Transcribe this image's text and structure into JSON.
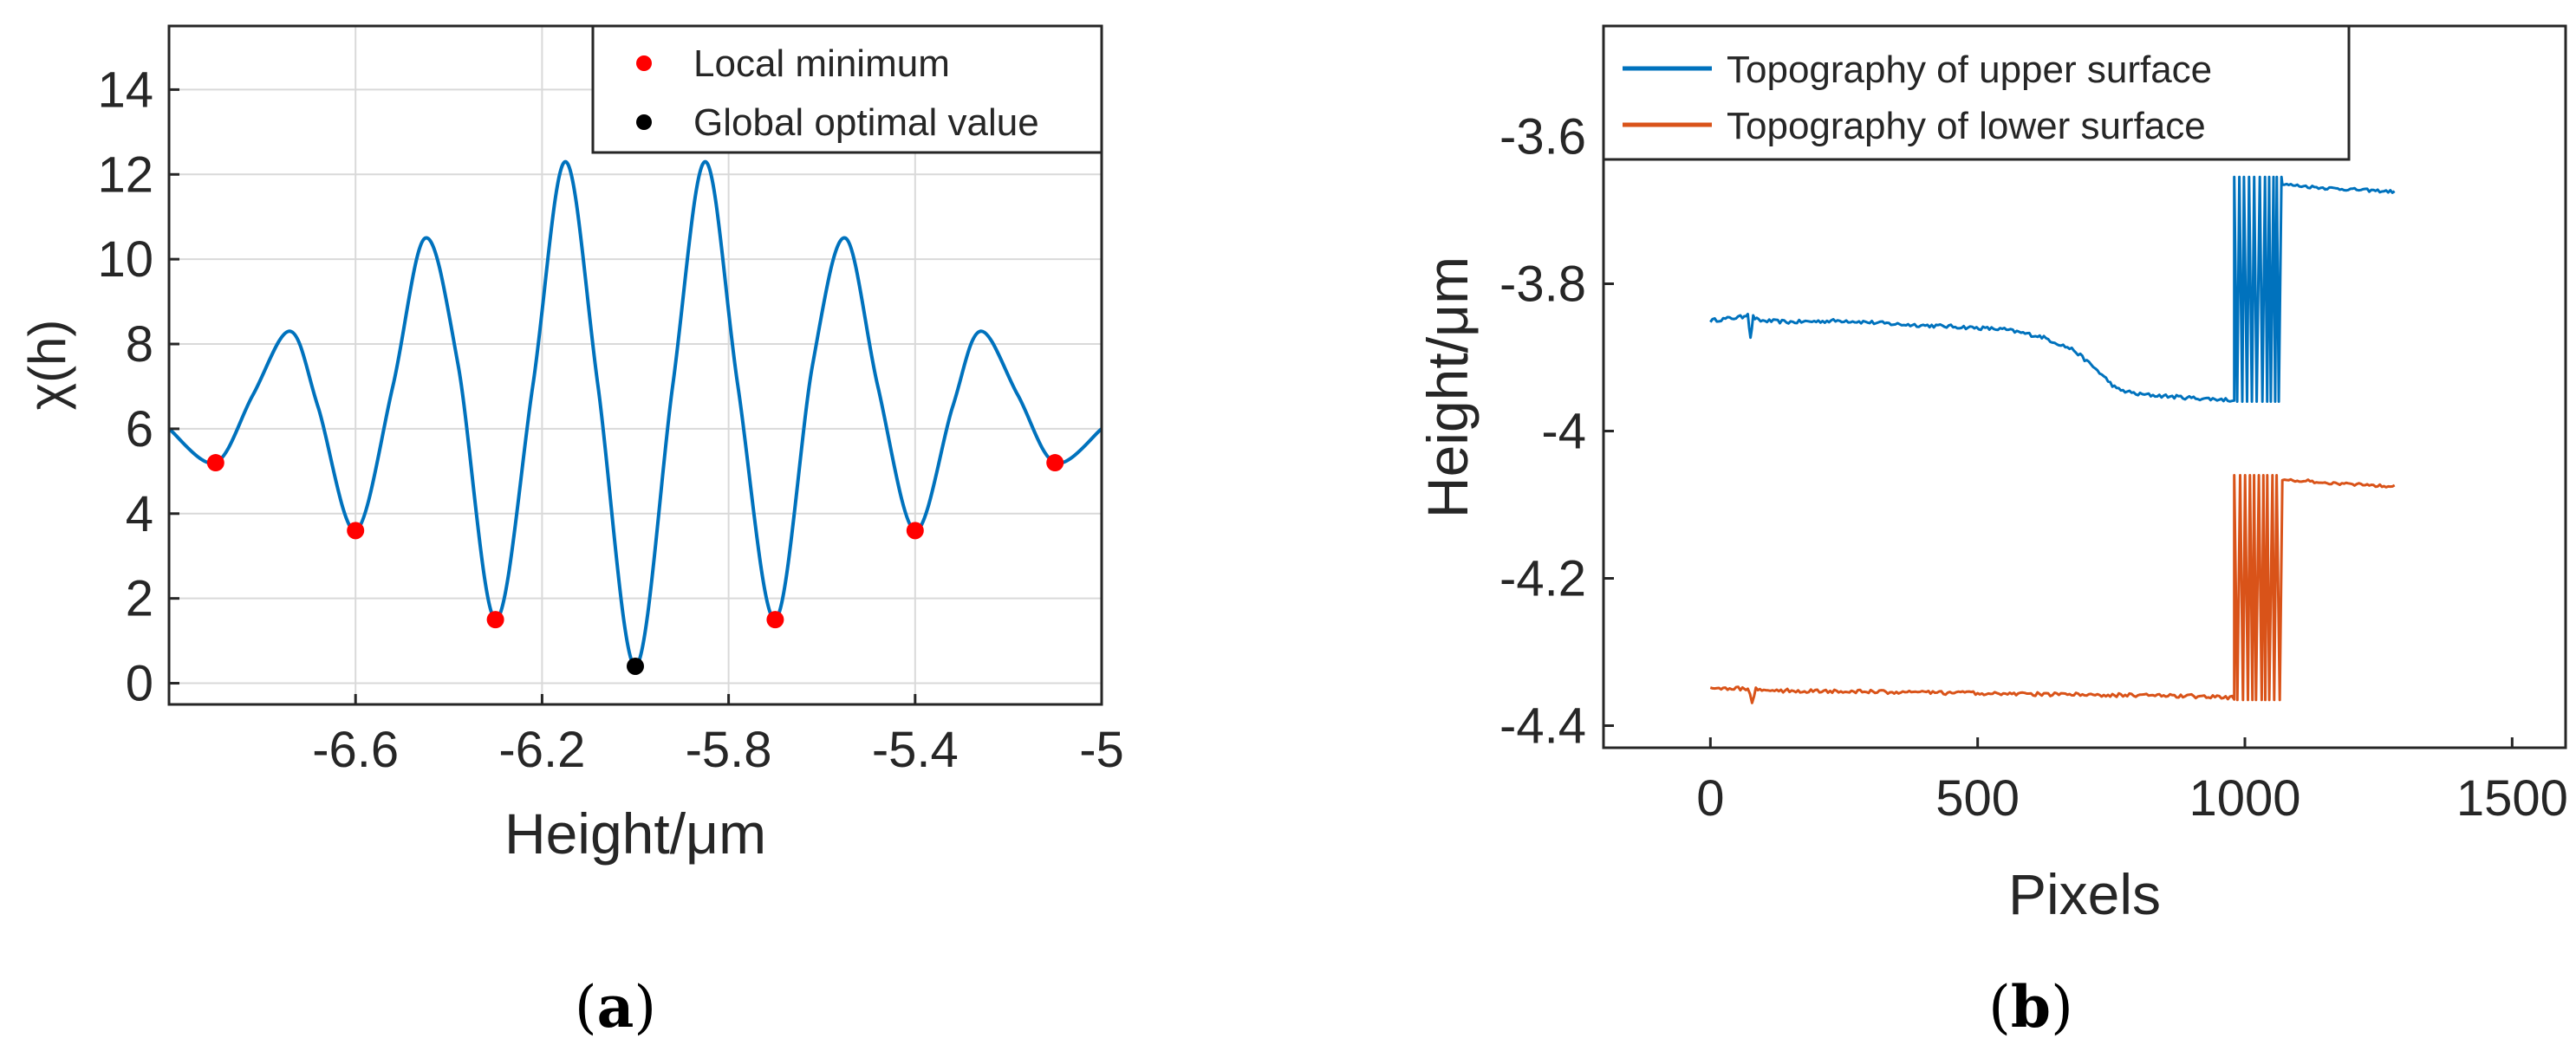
{
  "colors": {
    "blue": "#0072BD",
    "orange": "#D95319",
    "red": "#FF0000",
    "black": "#000000",
    "grid": "#D9D9D9",
    "axis": "#262626"
  },
  "chart_data": [
    {
      "type": "line",
      "panel_label": "(a)",
      "panel_letter": "a",
      "xlabel": "Height/μm",
      "ylabel": "χ(h)",
      "xlim": [
        -7.0,
        -5.0
      ],
      "ylim": [
        -0.5,
        15.5
      ],
      "xticks": [
        -6.6,
        -6.2,
        -5.8,
        -5.4,
        -5.0
      ],
      "xtick_labels": [
        "-6.6",
        "-6.2",
        "-5.8",
        "-5.4",
        "-5"
      ],
      "yticks": [
        0,
        2,
        4,
        6,
        8,
        10,
        12,
        14
      ],
      "ytick_labels": [
        "0",
        "2",
        "4",
        "6",
        "8",
        "10",
        "12",
        "14"
      ],
      "grid": true,
      "legend_position": "top-right",
      "series": [
        {
          "name": "χ(h)",
          "kind": "line",
          "x": [
            -7.0,
            -6.9,
            -6.82,
            -6.74,
            -6.68,
            -6.6,
            -6.52,
            -6.45,
            -6.38,
            -6.3,
            -6.22,
            -6.15,
            -6.08,
            -6.0,
            -5.92,
            -5.85,
            -5.78,
            -5.7,
            -5.62,
            -5.55,
            -5.48,
            -5.4,
            -5.32,
            -5.26,
            -5.18,
            -5.1,
            -5.0
          ],
          "values": [
            6.0,
            5.2,
            6.8,
            8.3,
            6.5,
            3.6,
            7.0,
            10.5,
            7.5,
            1.5,
            7.0,
            12.3,
            7.0,
            0.4,
            7.0,
            12.3,
            7.0,
            1.5,
            7.5,
            10.5,
            7.0,
            3.6,
            6.5,
            8.3,
            6.8,
            5.2,
            6.0
          ]
        },
        {
          "name": "Local minimum",
          "kind": "marker",
          "x": [
            -6.9,
            -6.6,
            -6.3,
            -5.7,
            -5.4,
            -5.1
          ],
          "values": [
            5.2,
            3.6,
            1.5,
            1.5,
            3.6,
            5.2
          ]
        },
        {
          "name": "Global optimal value",
          "kind": "marker",
          "x": [
            -6.0
          ],
          "values": [
            0.4
          ]
        }
      ]
    },
    {
      "type": "line",
      "panel_label": "(b)",
      "panel_letter": "b",
      "xlabel": "Pixels",
      "ylabel": "Height/μm",
      "xlim": [
        -200,
        1600
      ],
      "ylim": [
        -4.43,
        -3.45
      ],
      "xticks": [
        0,
        500,
        1000,
        1500
      ],
      "xtick_labels": [
        "0",
        "500",
        "1000",
        "1500"
      ],
      "yticks": [
        -4.4,
        -4.2,
        -4.0,
        -3.8,
        -3.6
      ],
      "ytick_labels": [
        "-4.4",
        "-4.2",
        "-4",
        "-3.8",
        "-3.6"
      ],
      "grid": false,
      "legend_position": "top-left",
      "series": [
        {
          "name": "Topography of upper surface",
          "x": [
            0,
            60,
            70,
            75,
            80,
            90,
            150,
            250,
            350,
            450,
            550,
            620,
            680,
            720,
            760,
            800,
            900,
            980
          ],
          "values": [
            -3.85,
            -3.845,
            -3.84,
            -3.875,
            -3.845,
            -3.85,
            -3.852,
            -3.85,
            -3.855,
            -3.858,
            -3.862,
            -3.872,
            -3.89,
            -3.915,
            -3.943,
            -3.95,
            -3.955,
            -3.958
          ],
          "spike_region": [
            980,
            1070
          ],
          "spike_range": [
            -3.96,
            -3.655
          ],
          "tail_x": [
            1070,
            1150,
            1280
          ],
          "tail_values": [
            -3.665,
            -3.67,
            -3.675
          ]
        },
        {
          "name": "Topography of lower surface",
          "x": [
            0,
            60,
            70,
            78,
            85,
            100,
            300,
            500,
            700,
            900,
            980
          ],
          "values": [
            -4.348,
            -4.35,
            -4.35,
            -4.368,
            -4.35,
            -4.352,
            -4.354,
            -4.356,
            -4.358,
            -4.36,
            -4.362
          ],
          "spike_region": [
            980,
            1070
          ],
          "spike_range": [
            -4.365,
            -4.06
          ],
          "tail_x": [
            1070,
            1150,
            1280
          ],
          "tail_values": [
            -4.065,
            -4.07,
            -4.075
          ]
        }
      ]
    }
  ]
}
